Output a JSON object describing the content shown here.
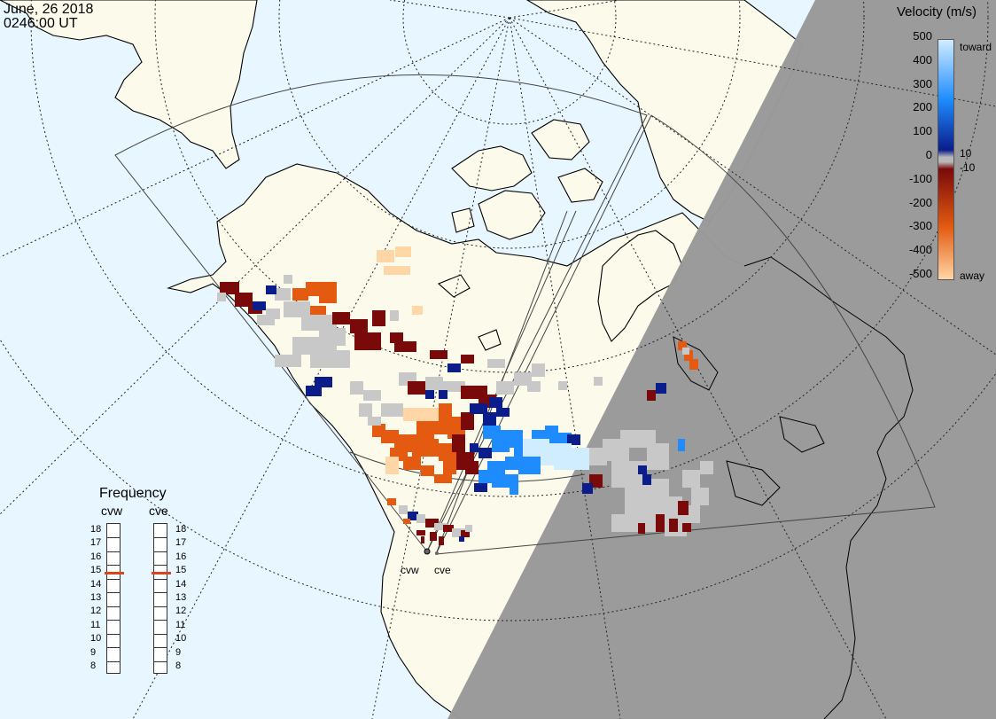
{
  "header": {
    "date": "June, 26 2018",
    "time": "0246:00 UT"
  },
  "velocity_legend": {
    "title": "Velocity (m/s)",
    "toward_label": "toward",
    "away_label": "away",
    "ticks": [
      "500",
      "400",
      "300",
      "200",
      "100",
      "0",
      "-100",
      "-200",
      "-300",
      "-400",
      "-500"
    ],
    "threshold_labels": [
      "10",
      "-10"
    ],
    "colors": {
      "toward_high": "#d0ecff",
      "toward_mid": "#1e8cff",
      "toward_low": "#0a1d8a",
      "zero": "#b8b8b8",
      "away_low": "#7a0a0a",
      "away_mid": "#e35a10",
      "away_high": "#ffd6a6"
    }
  },
  "frequency_legend": {
    "title": "Frequency",
    "radars": [
      {
        "name": "cvw",
        "frequency": 14.9
      },
      {
        "name": "cve",
        "frequency": 14.9
      }
    ],
    "scale": [
      "18",
      "17",
      "16",
      "15",
      "14",
      "13",
      "12",
      "11",
      "10",
      "9",
      "8"
    ]
  },
  "radar_sites": [
    {
      "name": "cvw"
    },
    {
      "name": "cve"
    }
  ],
  "map": {
    "ocean_color": "#e8f6ff",
    "land_color": "#fbfaeb",
    "night_color": "#999999",
    "ground_scatter_color": "#c8c8c8"
  }
}
